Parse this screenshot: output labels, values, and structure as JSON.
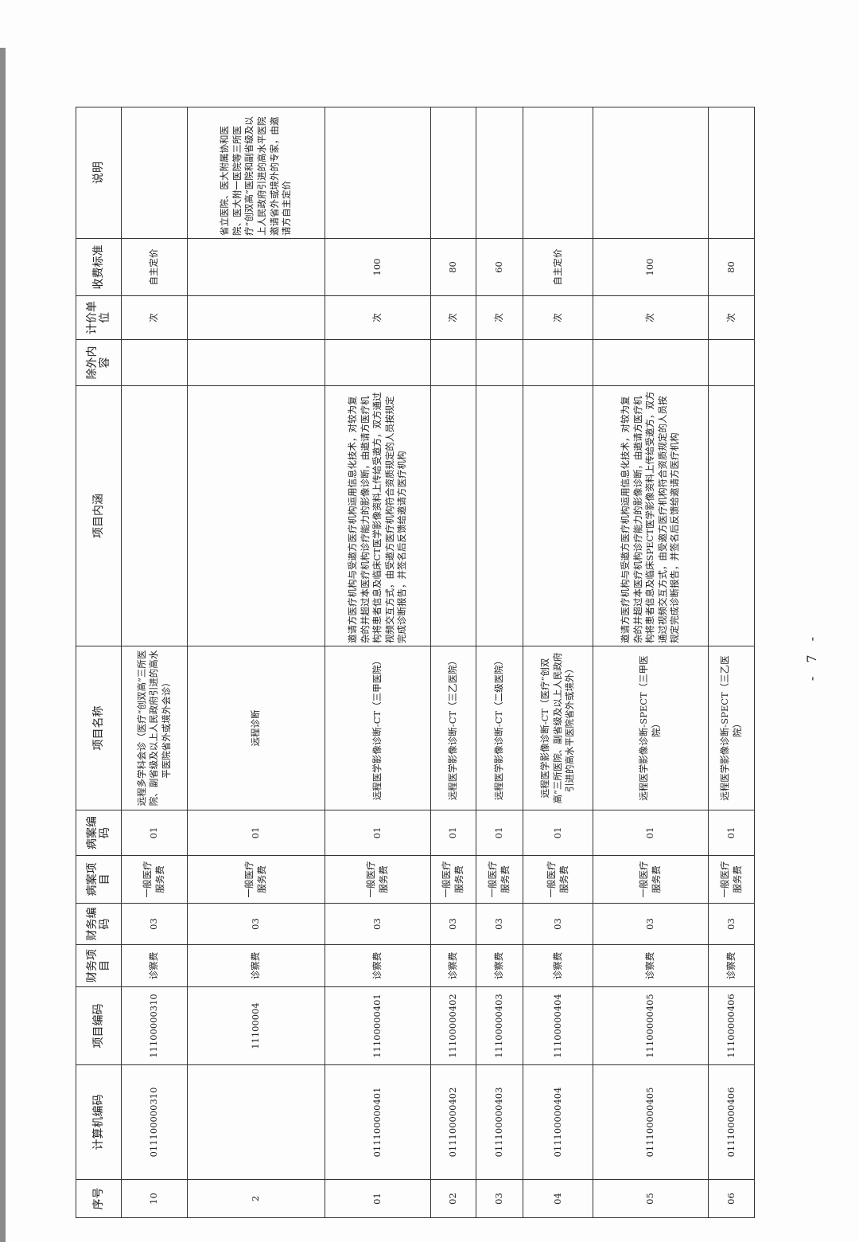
{
  "headers": [
    "序号",
    "计算机编码",
    "项目编码",
    "财务项目",
    "财务编码",
    "病案项目",
    "病案编码",
    "项目名称",
    "项目内涵",
    "除外内容",
    "计价单位",
    "收费标准",
    "说明"
  ],
  "rows": [
    [
      "10",
      "011100000310",
      "11100000310",
      "诊察费",
      "03",
      "一般医疗服务费",
      "01",
      "远程多学科会诊（医疗“创双高”三所医院、副省级及以上人民政府引进的高水平医院省外或境外会诊）",
      "",
      "",
      "次",
      "自主定价",
      ""
    ],
    [
      "2",
      "",
      "11100004",
      "诊察费",
      "03",
      "一般医疗服务费",
      "01",
      "远程诊断",
      "",
      "",
      "",
      "",
      "省立医院、医大附属协和医院、医大附一医院等三所医疗“创双高”医院和副省级及以上人民政府引进的高水平医院邀请省外或境外的专家，由邀请方自主定价"
    ],
    [
      "01",
      "011100000401",
      "11100000401",
      "诊察费",
      "03",
      "一般医疗服务费",
      "01",
      "远程医学影像诊断-CT（三甲医院）",
      "邀请方医疗机构与受邀方医疗机构运用信息化技术，对较为复杂的并超过本医疗机构诊疗能力的影像诊断，由邀请方医疗机构将患者信息及临床CT医学影像资料上传给受邀方，双方通过视频交互方式，由受邀方医疗机构符合资质规定的人员按规定完成诊断报告，并签名后反馈给邀请方医疗机构",
      "",
      "次",
      "100",
      ""
    ],
    [
      "02",
      "011100000402",
      "11100000402",
      "诊察费",
      "03",
      "一般医疗服务费",
      "01",
      "远程医学影像诊断-CT（三乙医院）",
      "",
      "",
      "次",
      "80",
      ""
    ],
    [
      "03",
      "011100000403",
      "11100000403",
      "诊察费",
      "03",
      "一般医疗服务费",
      "01",
      "远程医学影像诊断-CT（二级医院）",
      "",
      "",
      "次",
      "60",
      ""
    ],
    [
      "04",
      "011100000404",
      "11100000404",
      "诊察费",
      "03",
      "一般医疗服务费",
      "01",
      "远程医学影像诊断-CT（医疗“创双高”三所医院、副省级及以上人民政府引进的高水平医院省外或境外）",
      "",
      "",
      "次",
      "自主定价",
      ""
    ],
    [
      "05",
      "011100000405",
      "11100000405",
      "诊察费",
      "03",
      "一般医疗服务费",
      "01",
      "远程医学影像诊断-SPECT（三甲医院）",
      "邀请方医疗机构与受邀方医疗机构运用信息化技术，对较为复杂的并超过本医疗机构诊疗能力的影像诊断，由邀请方医疗机构将患者信息及临床SPECT医学影像资料上传给受邀方，双方通过视频交互方式，由受邀方医疗机构符合资质规定的人员按规定完成诊断报告，并签名后反馈给邀请方医疗机构",
      "",
      "次",
      "100",
      ""
    ],
    [
      "06",
      "011100000406",
      "11100000406",
      "诊察费",
      "03",
      "一般医疗服务费",
      "01",
      "远程医学影像诊断-SPECT（三乙医院）",
      "",
      "",
      "次",
      "80",
      ""
    ]
  ],
  "page_number": "- 7 -"
}
